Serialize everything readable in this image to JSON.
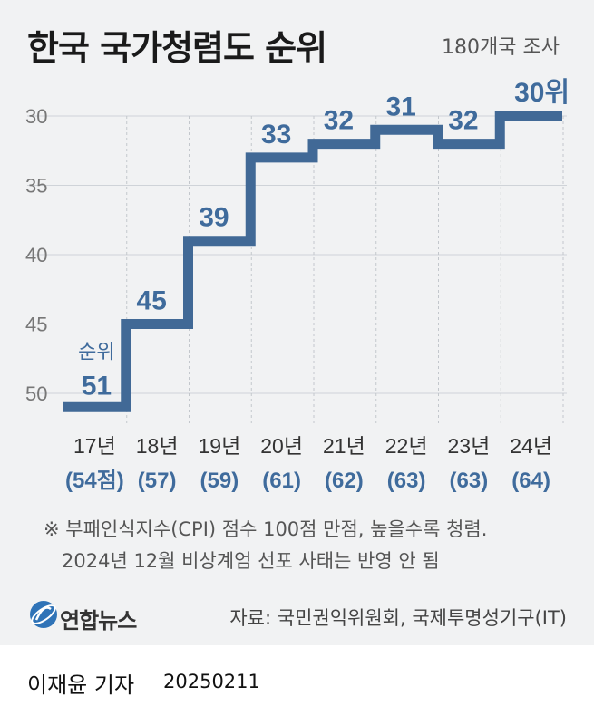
{
  "title": "한국 국가청렴도 순위",
  "subtitle": "180개국 조사",
  "chart_data": {
    "type": "line",
    "step": true,
    "ylim": [
      52,
      28
    ],
    "y_ticks": [
      30,
      35,
      40,
      45,
      50
    ],
    "grid": true,
    "categories": [
      "17년",
      "18년",
      "19년",
      "20년",
      "21년",
      "22년",
      "23년",
      "24년"
    ],
    "scores": [
      "(54점)",
      "(57)",
      "(59)",
      "(61)",
      "(62)",
      "(63)",
      "(63)",
      "(64)"
    ],
    "values": [
      51,
      45,
      39,
      33,
      32,
      31,
      32,
      30
    ],
    "value_labels": [
      "51",
      "45",
      "39",
      "33",
      "32",
      "31",
      "32",
      "30위"
    ],
    "first_label_prefix": "순위",
    "line_color": "#416996",
    "label_color": "#3f6b9c"
  },
  "notes": [
    "※ 부패인식지수(CPI) 점수 100점 만점, 높을수록 청렴.",
    "2024년 12월 비상계엄 선포 사태는 반영 안 됨"
  ],
  "source": "자료: 국민권익위원회, 국제투명성기구(IT)",
  "logo": {
    "text": "연합뉴스",
    "icon": "yonhap-globe-logo-icon"
  },
  "reporter": "이재윤 기자",
  "date": "20250211"
}
